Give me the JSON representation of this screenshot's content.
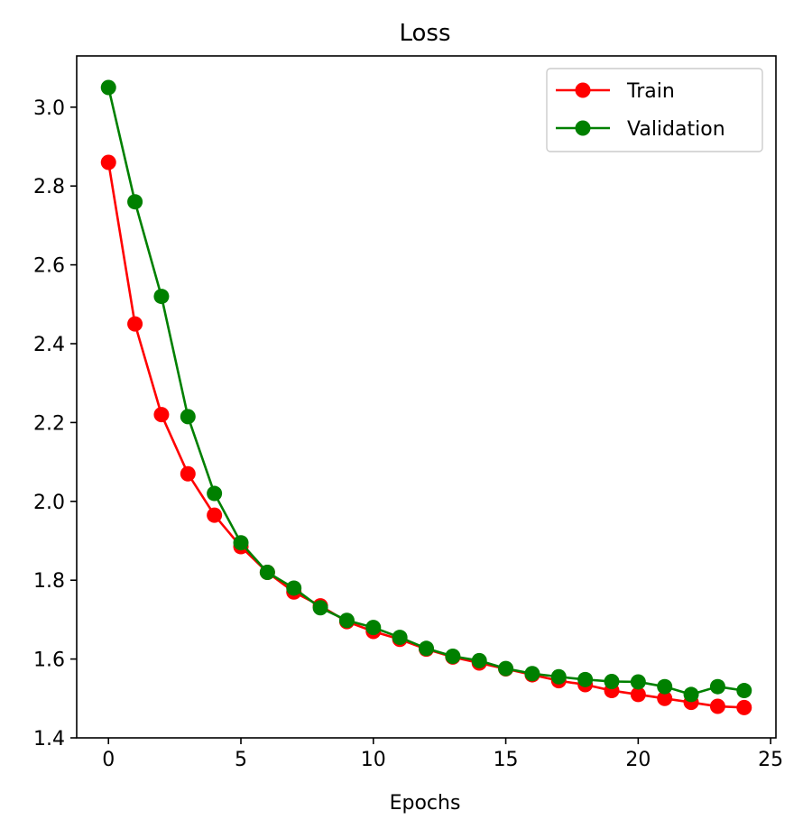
{
  "chart_data": {
    "type": "line",
    "title": "Loss",
    "xlabel": "Epochs",
    "ylabel": "",
    "xlim": [
      -1.2,
      25.2
    ],
    "ylim": [
      1.4,
      3.13
    ],
    "xticks": [
      0,
      5,
      10,
      15,
      20,
      25
    ],
    "yticks": [
      1.4,
      1.6,
      1.8,
      2.0,
      2.2,
      2.4,
      2.6,
      2.8,
      3.0
    ],
    "xtick_labels": [
      "0",
      "5",
      "10",
      "15",
      "20",
      "25"
    ],
    "ytick_labels": [
      "1.4",
      "1.6",
      "1.8",
      "2.0",
      "2.2",
      "2.4",
      "2.6",
      "2.8",
      "3.0"
    ],
    "grid": false,
    "legend_position": "top-right",
    "x": [
      0,
      1,
      2,
      3,
      4,
      5,
      6,
      7,
      8,
      9,
      10,
      11,
      12,
      13,
      14,
      15,
      16,
      17,
      18,
      19,
      20,
      21,
      22,
      23,
      24
    ],
    "series": [
      {
        "name": "Train",
        "color": "#ff0000",
        "marker": "circle",
        "values": [
          2.86,
          2.45,
          2.22,
          2.07,
          1.965,
          1.885,
          1.82,
          1.77,
          1.735,
          1.695,
          1.67,
          1.65,
          1.625,
          1.605,
          1.59,
          1.575,
          1.56,
          1.545,
          1.535,
          1.52,
          1.51,
          1.5,
          1.49,
          1.48,
          1.477
        ]
      },
      {
        "name": "Validation",
        "color": "#008000",
        "marker": "circle",
        "values": [
          3.05,
          2.76,
          2.52,
          2.215,
          2.02,
          1.895,
          1.82,
          1.78,
          1.73,
          1.698,
          1.68,
          1.655,
          1.627,
          1.607,
          1.596,
          1.576,
          1.563,
          1.555,
          1.548,
          1.543,
          1.542,
          1.53,
          1.51,
          1.53,
          1.52
        ]
      }
    ]
  }
}
